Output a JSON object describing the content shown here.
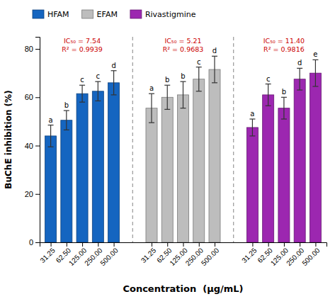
{
  "chart_data": {
    "type": "bar",
    "xlabel": "Concentration  (µg/mL)",
    "ylabel": "BuChE inhibition (%)",
    "categories": [
      "31.25",
      "62.50",
      "125.00",
      "250.00",
      "500.00"
    ],
    "series": [
      {
        "name": "HFAM",
        "color": "#1565C0",
        "values": [
          44.0,
          50.5,
          61.5,
          62.5,
          66.0
        ],
        "errors": [
          4.5,
          4.0,
          3.5,
          4.0,
          5.0
        ],
        "letters": [
          "a",
          "b",
          "c",
          "c",
          "d"
        ],
        "annotations": [
          "IC₅₀ = 7.54",
          "R² = 0.9939"
        ]
      },
      {
        "name": "EFAM",
        "color": "#BDBDBD",
        "values": [
          55.5,
          60.0,
          61.0,
          67.5,
          71.5
        ],
        "errors": [
          6.0,
          5.0,
          5.5,
          5.0,
          5.5
        ],
        "letters": [
          "a",
          "b",
          "b",
          "c",
          "d"
        ],
        "annotations": [
          "IC₅₀ = 5.21",
          "R² = 0.9683"
        ]
      },
      {
        "name": "Rivastigmine",
        "color": "#9C27B0",
        "values": [
          47.5,
          61.0,
          55.5,
          67.5,
          70.0
        ],
        "errors": [
          3.5,
          4.5,
          4.5,
          4.5,
          5.5
        ],
        "letters": [
          "a",
          "c",
          "b",
          "d",
          "e"
        ],
        "annotations": [
          "IC₅₀ = 11.40",
          "R² = 0.9816"
        ]
      }
    ],
    "ylim": [
      0,
      85
    ],
    "yticks": [
      0,
      20,
      40,
      60,
      80
    ],
    "grid": false,
    "legend": "top"
  }
}
